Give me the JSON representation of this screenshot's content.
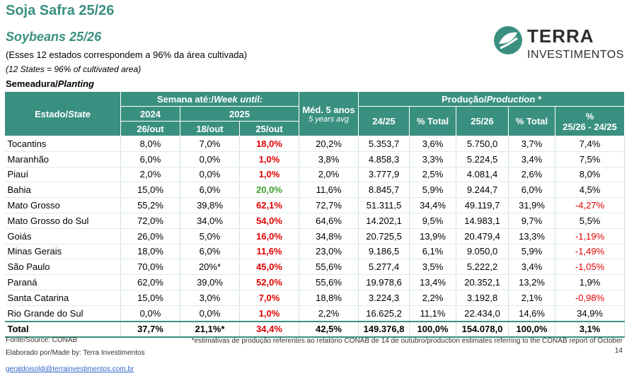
{
  "header": {
    "title": "Soja Safra 25/26",
    "subtitle": "Soybeans 25/26",
    "note_pt": "(Esses 12 estados correspondem a 96% da área cultivada)",
    "note_en": "(12 States = 96% of cultivated area)",
    "section_pt": "Semeadura/",
    "section_en": "Planting"
  },
  "logo": {
    "word": "TERRA",
    "sub": "INVESTIMENTOS",
    "color": "#3a9080"
  },
  "table": {
    "col_state_pt": "Estado/",
    "col_state_en": "State",
    "group_week_pt": "Semana até:/",
    "group_week_en": "Week until:",
    "year_2024": "2024",
    "year_2025": "2025",
    "date_1": "26/out",
    "date_2": "18/out",
    "date_3": "25/out",
    "avg_label": "Méd. 5 anos",
    "avg_sub": "5 years avg",
    "group_prod_pt": "Produção/",
    "group_prod_en": "Production *",
    "col_2425": "24/25",
    "col_pct1": "% Total",
    "col_2526": "25/26",
    "col_pct2": "% Total",
    "col_var_1": "%",
    "col_var_2": "25/26 - 24/25",
    "rows": [
      {
        "state": "Tocantins",
        "a": "8,0%",
        "b": "7,0%",
        "c": "18,0%",
        "avg": "20,2%",
        "p1": "5.353,7",
        "t1": "3,6%",
        "p2": "5.750,0",
        "t2": "3,7%",
        "v": "7,4%"
      },
      {
        "state": "Maranhão",
        "a": "6,0%",
        "b": "0,0%",
        "c": "1,0%",
        "avg": "3,8%",
        "p1": "4.858,3",
        "t1": "3,3%",
        "p2": "5.224,5",
        "t2": "3,4%",
        "v": "7,5%"
      },
      {
        "state": "Piauí",
        "a": "2,0%",
        "b": "0,0%",
        "c": "1,0%",
        "avg": "2,0%",
        "p1": "3.777,9",
        "t1": "2,5%",
        "p2": "4.081,4",
        "t2": "2,6%",
        "v": "8,0%"
      },
      {
        "state": "Bahia",
        "a": "15,0%",
        "b": "6,0%",
        "c": "20,0%",
        "avg": "11,6%",
        "p1": "8.845,7",
        "t1": "5,9%",
        "p2": "9.244,7",
        "t2": "6,0%",
        "v": "4,5%"
      },
      {
        "state": "Mato Grosso",
        "a": "55,2%",
        "b": "39,8%",
        "c": "62,1%",
        "avg": "72,7%",
        "p1": "51.311,5",
        "t1": "34,4%",
        "p2": "49.119,7",
        "t2": "31,9%",
        "v": "-4,27%"
      },
      {
        "state": "Mato Grosso do Sul",
        "a": "72,0%",
        "b": "34,0%",
        "c": "54,0%",
        "avg": "64,6%",
        "p1": "14.202,1",
        "t1": "9,5%",
        "p2": "14.983,1",
        "t2": "9,7%",
        "v": "5,5%"
      },
      {
        "state": "Goiás",
        "a": "26,0%",
        "b": "5,0%",
        "c": "16,0%",
        "avg": "34,8%",
        "p1": "20.725,5",
        "t1": "13,9%",
        "p2": "20.479,4",
        "t2": "13,3%",
        "v": "-1,19%"
      },
      {
        "state": "Minas Gerais",
        "a": "18,0%",
        "b": "6,0%",
        "c": "11,6%",
        "avg": "23,0%",
        "p1": "9.186,5",
        "t1": "6,1%",
        "p2": "9.050,0",
        "t2": "5,9%",
        "v": "-1,49%"
      },
      {
        "state": "São Paulo",
        "a": "70,0%",
        "b": "20%*",
        "c": "45,0%",
        "avg": "55,6%",
        "p1": "5.277,4",
        "t1": "3,5%",
        "p2": "5.222,2",
        "t2": "3,4%",
        "v": "-1,05%"
      },
      {
        "state": "Paraná",
        "a": "62,0%",
        "b": "39,0%",
        "c": "52,0%",
        "avg": "55,6%",
        "p1": "19.978,6",
        "t1": "13,4%",
        "p2": "20.352,1",
        "t2": "13,2%",
        "v": "1,9%"
      },
      {
        "state": "Santa Catarina",
        "a": "15,0%",
        "b": "3,0%",
        "c": "7,0%",
        "avg": "18,8%",
        "p1": "3.224,3",
        "t1": "2,2%",
        "p2": "3.192,8",
        "t2": "2,1%",
        "v": "-0,98%"
      },
      {
        "state": "Rio Grande do Sul",
        "a": "0,0%",
        "b": "0,0%",
        "c": "1,0%",
        "avg": "2,2%",
        "p1": "16.625,2",
        "t1": "11,1%",
        "p2": "22.434,0",
        "t2": "14,6%",
        "v": "34,9%"
      }
    ],
    "total": {
      "state": "Total",
      "a": "37,7%",
      "b": "21,1%*",
      "c": "34,4%",
      "avg": "42,5%",
      "p1": "149.376,8",
      "t1": "100,0%",
      "p2": "154.078,0",
      "t2": "100,0%",
      "v": "3,1%"
    }
  },
  "footer": {
    "source": "Fonte/Source: CONAB",
    "made_by": "Elaborado por/Made by: Terra Investimentos",
    "email": "geraldoisoldi@terrainvestimentos.com.br",
    "note": "*estimativas de produção referentes ao relatório CONAB de 14 de outubro/production estimates referring to the CONAB report of October 14"
  },
  "colors": {
    "header_bg": "#3a9080",
    "highlight_red": "#e00000",
    "highlight_green": "#3aa02a"
  }
}
